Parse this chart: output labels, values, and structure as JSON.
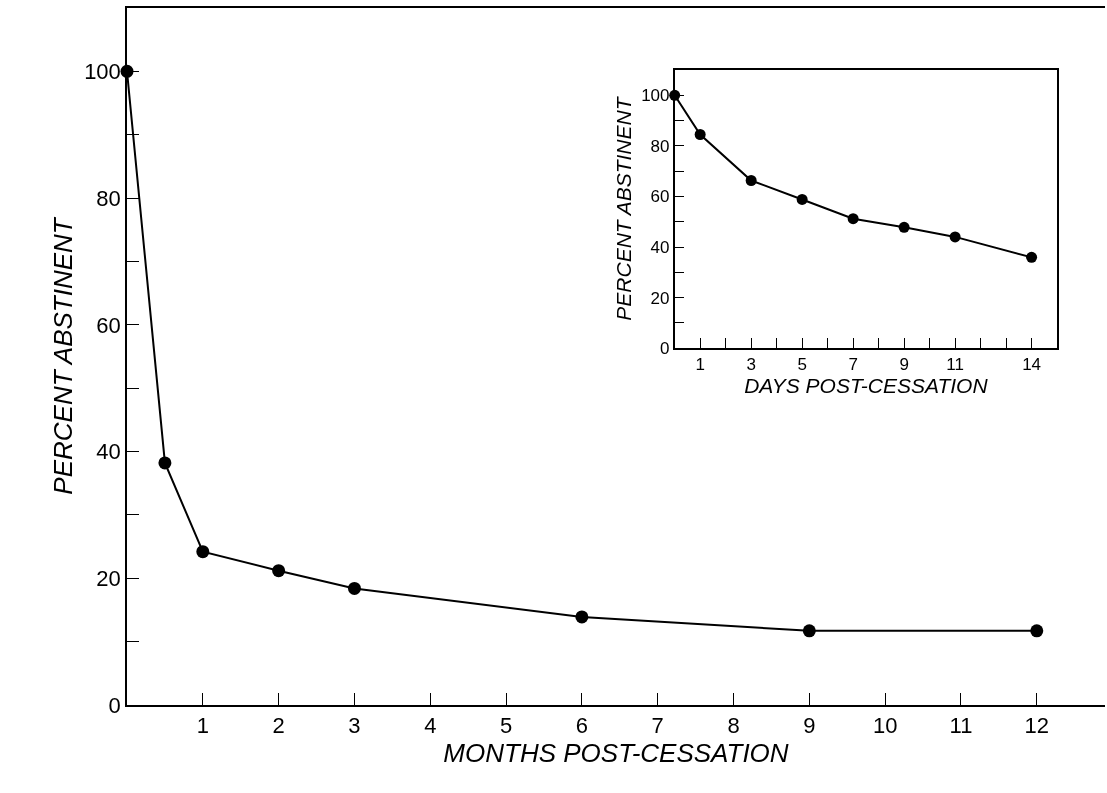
{
  "chart_data": [
    {
      "type": "line",
      "xlabel": "MONTHS POST-CESSATION",
      "ylabel": "PERCENT ABSTINENT",
      "x": [
        0,
        0.5,
        1,
        2,
        3,
        6,
        9,
        12
      ],
      "series": [
        {
          "color": "#000000",
          "values": [
            100,
            38.2,
            24.2,
            21.2,
            18.4,
            13.9,
            11.7,
            11.7
          ]
        }
      ],
      "xlim": [
        0,
        12.9
      ],
      "ylim": [
        0,
        110
      ],
      "xticks": [
        1,
        2,
        3,
        4,
        5,
        6,
        7,
        8,
        9,
        10,
        11,
        12
      ],
      "yticks": [
        0,
        {
          "value": 10,
          "label": null
        },
        20,
        {
          "value": 30,
          "label": null
        },
        40,
        {
          "value": 50,
          "label": null
        },
        60,
        {
          "value": 70,
          "label": null
        },
        80,
        {
          "value": 90,
          "label": null
        },
        100
      ],
      "marker": "circle"
    },
    {
      "type": "line",
      "xlabel": "DAYS POST-CESSATION",
      "ylabel": "PERCENT ABSTINENT",
      "x": [
        0,
        1,
        3,
        5,
        7,
        9,
        11,
        14
      ],
      "series": [
        {
          "color": "#000000",
          "values": [
            100,
            84.5,
            66.3,
            58.8,
            51.2,
            47.8,
            44.0,
            35.9
          ]
        }
      ],
      "xlim": [
        0,
        15
      ],
      "ylim": [
        0,
        110
      ],
      "xticks": [
        1,
        {
          "value": 2,
          "label": null
        },
        3,
        {
          "value": 4,
          "label": null
        },
        5,
        {
          "value": 6,
          "label": null
        },
        7,
        {
          "value": 8,
          "label": null
        },
        9,
        {
          "value": 10,
          "label": null
        },
        11,
        {
          "value": 12,
          "label": null
        },
        {
          "value": 13,
          "label": null
        },
        14
      ],
      "yticks": [
        0,
        {
          "value": 10,
          "label": null
        },
        20,
        {
          "value": 30,
          "label": null
        },
        40,
        {
          "value": 50,
          "label": null
        },
        60,
        {
          "value": 70,
          "label": null
        },
        80,
        {
          "value": 90,
          "label": null
        },
        100
      ],
      "marker": "circle"
    }
  ]
}
